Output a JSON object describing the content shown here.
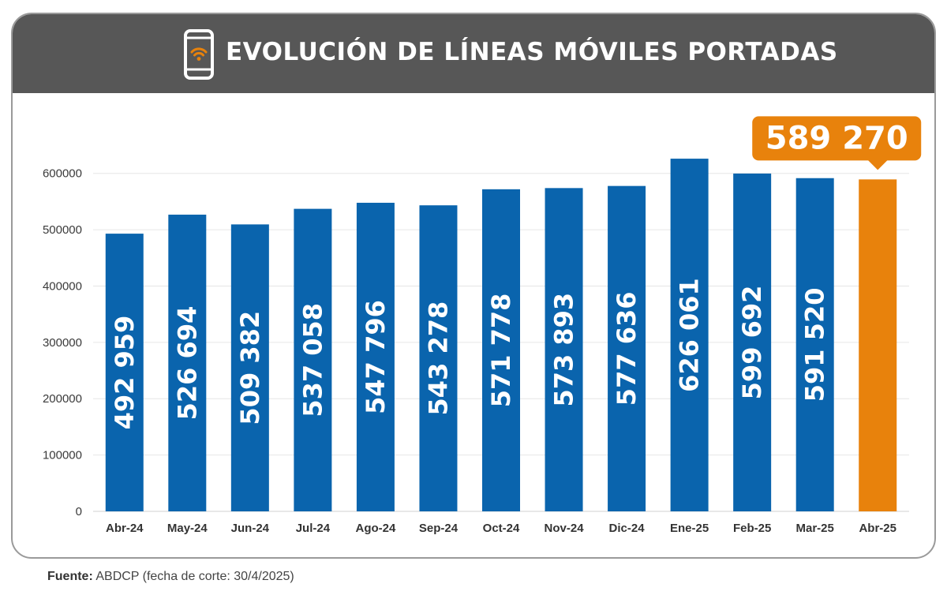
{
  "header": {
    "title": "EVOLUCIÓN DE LÍNEAS MÓVILES PORTADAS",
    "icon": "smartphone-wifi-icon"
  },
  "colors": {
    "header_bg": "#575757",
    "bar": "#0a64ad",
    "highlight": "#e8820c",
    "icon_accent": "#e8820c"
  },
  "chart_data": {
    "type": "bar",
    "categories": [
      "Abr-24",
      "May-24",
      "Jun-24",
      "Jul-24",
      "Ago-24",
      "Sep-24",
      "Oct-24",
      "Nov-24",
      "Dic-24",
      "Ene-25",
      "Feb-25",
      "Mar-25",
      "Abr-25"
    ],
    "values": [
      492959,
      526694,
      509382,
      537058,
      547796,
      543278,
      571778,
      573893,
      577636,
      626061,
      599692,
      591520,
      589270
    ],
    "data_labels": [
      "492 959",
      "526 694",
      "509 382",
      "537 058",
      "547 796",
      "543 278",
      "571 778",
      "573 893",
      "577 636",
      "626 061",
      "599 692",
      "591 520",
      ""
    ],
    "highlight_index": 12,
    "highlight_label": "589 270",
    "ylim": [
      0,
      650000
    ],
    "yticks": [
      0,
      100000,
      200000,
      300000,
      400000,
      500000,
      600000
    ],
    "ytick_labels": [
      "0",
      "100000",
      "200000",
      "300000",
      "400000",
      "500000",
      "600000"
    ],
    "grid": true,
    "legend": "none"
  },
  "footer": {
    "source_label": "Fuente:",
    "source_text": " ABDCP (fecha de corte: 30/4/2025)"
  }
}
